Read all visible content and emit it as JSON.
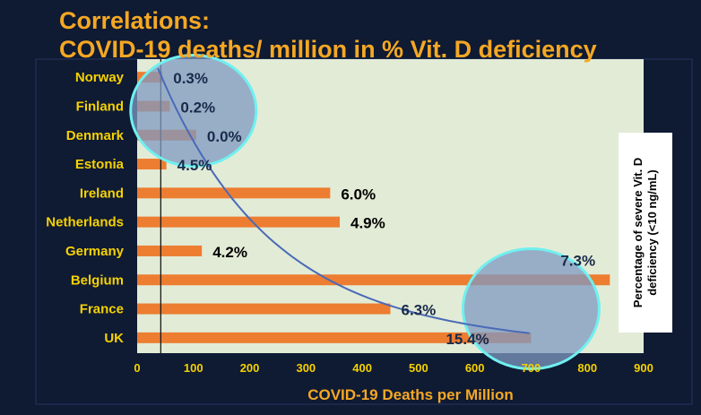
{
  "title_line1": "Correlations:",
  "title_line2": "COVID-19 deaths/ million in % Vit. D deficiency",
  "side_label": "Percentage of severe Vit. D deficiency (<10 ng/mL)",
  "colors": {
    "background": "#0f1a33",
    "plot_area": "#e2ebd6",
    "bar": "#ed7d31",
    "title": "#f5a823",
    "tick_label": "#f5d200",
    "circle_fill": "#7f99c2",
    "circle_stroke": "#6ff0f0",
    "curve": "#4a6ab8"
  },
  "chart_data": {
    "type": "bar",
    "orientation": "horizontal",
    "title": "Correlations: COVID-19 deaths/ million in % Vit. D deficiency",
    "xlabel": "COVID-19 Deaths per Million",
    "ylabel": "",
    "xlim": [
      0,
      900
    ],
    "xticks": [
      0,
      100,
      200,
      300,
      400,
      500,
      600,
      700,
      800,
      900
    ],
    "categories": [
      "Norway",
      "Finland",
      "Denmark",
      "Estonia",
      "Ireland",
      "Netherlands",
      "Germany",
      "Belgium",
      "France",
      "UK"
    ],
    "values": [
      45,
      58,
      105,
      52,
      343,
      360,
      115,
      840,
      450,
      700
    ],
    "data_labels": [
      "0.3%",
      "0.2%",
      "0.0%",
      "4.5%",
      "6.0%",
      "4.9%",
      "4.2%",
      "7.3%",
      "6.3%",
      "15.4%"
    ],
    "reference_line_x": 42,
    "trend_curve": "exponential decay from ~Norway down to ~UK",
    "highlight_groups": [
      [
        "Norway",
        "Finland",
        "Denmark"
      ],
      [
        "Belgium",
        "UK"
      ]
    ]
  }
}
